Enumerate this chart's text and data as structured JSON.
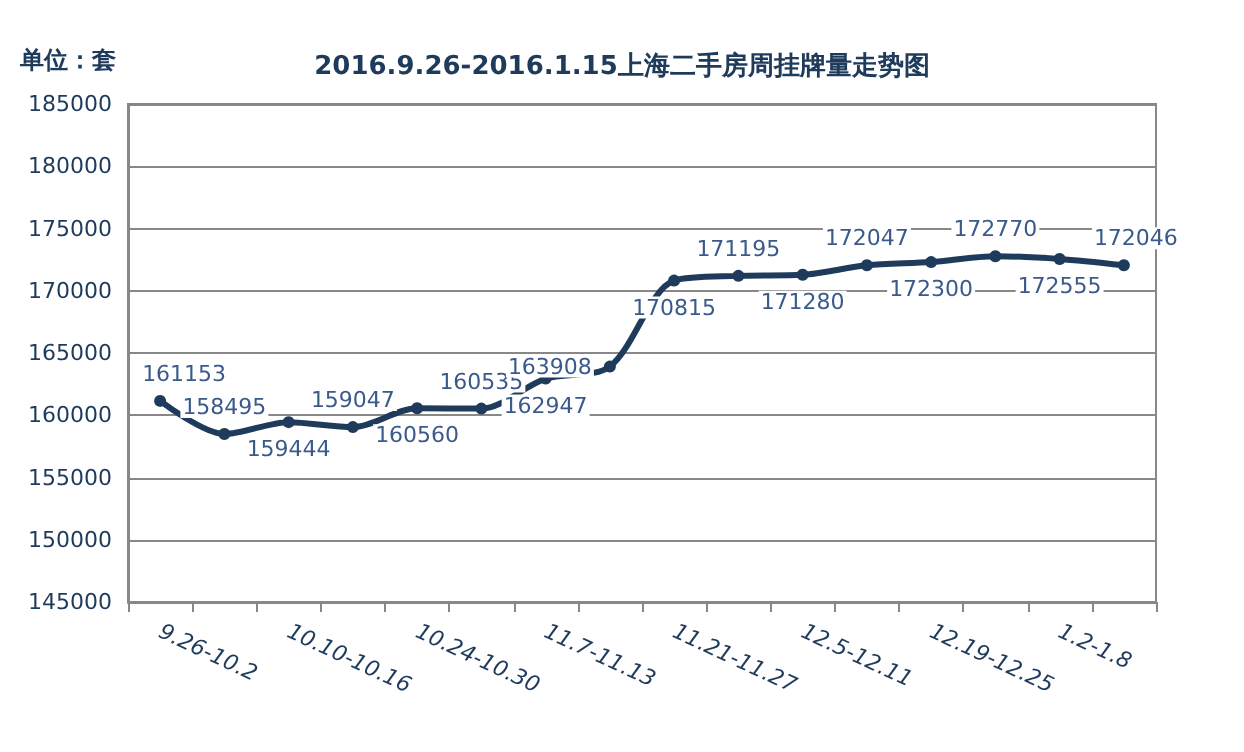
{
  "chart_data": {
    "type": "line",
    "title": "2016.9.26-2016.1.15上海二手房周挂牌量走势图",
    "annotations": [
      "单位：套"
    ],
    "categories": [
      "9.26-10.2",
      null,
      "10.10-10.16",
      null,
      "10.24-10.30",
      null,
      "11.7-11.13",
      null,
      "11.21-11.27",
      null,
      "12.5-12.11",
      null,
      "12.19-12.25",
      null,
      "1.2-1.8",
      null
    ],
    "series": [
      {
        "color": "#1f3b5c",
        "values": [
          161153,
          158495,
          159444,
          159047,
          160560,
          160535,
          162947,
          163908,
          170815,
          171195,
          171280,
          172047,
          172300,
          172770,
          172555,
          172046
        ]
      }
    ],
    "ylim": [
      145000,
      185000
    ],
    "yticks": [
      145000,
      150000,
      155000,
      160000,
      165000,
      170000,
      175000,
      180000,
      185000
    ],
    "grid": "y",
    "marker": "circle",
    "line_style": "solid",
    "data_labels": true
  }
}
